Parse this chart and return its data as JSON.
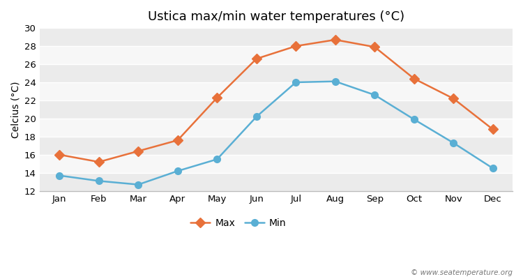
{
  "title": "Ustica max/min water temperatures (°C)",
  "ylabel": "Celcius (°C)",
  "months": [
    "Jan",
    "Feb",
    "Mar",
    "Apr",
    "May",
    "Jun",
    "Jul",
    "Aug",
    "Sep",
    "Oct",
    "Nov",
    "Dec"
  ],
  "max_temps": [
    16.0,
    15.2,
    16.4,
    17.6,
    22.3,
    26.6,
    28.0,
    28.7,
    27.9,
    24.4,
    22.2,
    18.8
  ],
  "min_temps": [
    13.7,
    13.1,
    12.7,
    14.2,
    15.5,
    20.2,
    24.0,
    24.1,
    22.6,
    19.9,
    17.3,
    14.5
  ],
  "max_color": "#e8713a",
  "min_color": "#5aafd4",
  "ylim": [
    12,
    30
  ],
  "yticks": [
    12,
    14,
    16,
    18,
    20,
    22,
    24,
    26,
    28,
    30
  ],
  "fig_bg_color": "#ffffff",
  "band_colors": [
    "#ebebeb",
    "#f7f7f7"
  ],
  "grid_line_color": "#ffffff",
  "watermark": "© www.seatemperature.org",
  "title_fontsize": 13,
  "label_fontsize": 10,
  "tick_fontsize": 9.5,
  "legend_fontsize": 10
}
